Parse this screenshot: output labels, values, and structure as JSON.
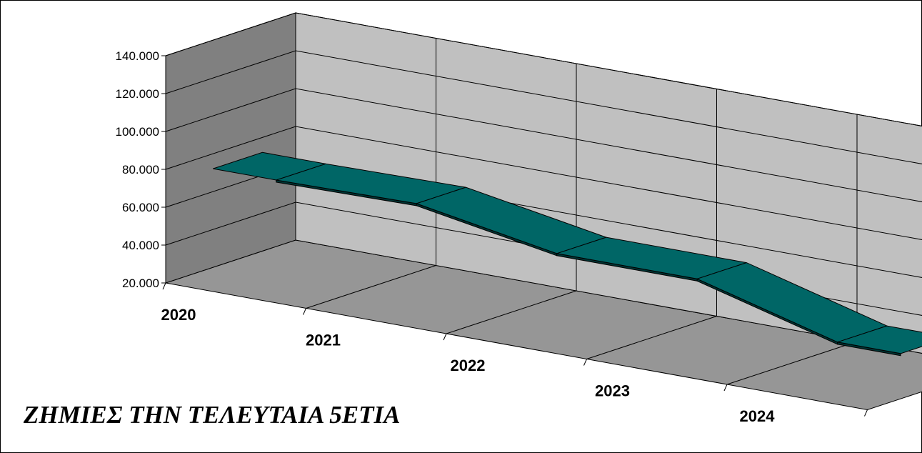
{
  "chart_data": {
    "type": "area",
    "title": "ΖΗΜΙΕΣ ΤΗΝ ΤΕΛΕΥΤΑΙΑ 5ΕΤΙΑ",
    "xlabel": "",
    "ylabel": "",
    "categories": [
      "2020",
      "2021",
      "2022",
      "2023",
      "2024"
    ],
    "series": [
      {
        "values": [
          74000,
          75000,
          62000,
          62000,
          42000
        ]
      }
    ],
    "ylim": [
      20000,
      140000
    ],
    "yticks": [
      20000,
      40000,
      60000,
      80000,
      100000,
      120000,
      140000
    ],
    "ytick_labels": [
      "20.000",
      "40.000",
      "60.000",
      "80.000",
      "100.000",
      "120.000",
      "140.000"
    ],
    "grid": true,
    "legend": "none",
    "style": "3d",
    "colors": {
      "series_top": "#006666",
      "back_wall": "#c0c0c0",
      "side_wall": "#808080",
      "floor": "#969696",
      "outline": "#000000"
    }
  }
}
